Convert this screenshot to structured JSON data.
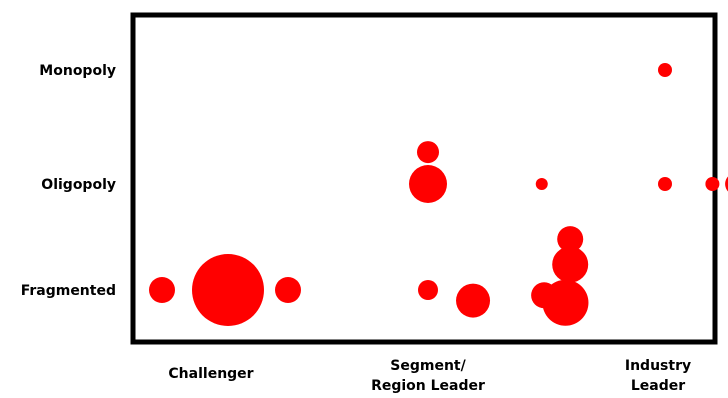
{
  "chart_data": {
    "type": "scatter",
    "title": "",
    "xlabel": "",
    "ylabel": "",
    "x_categories": [
      "Challenger",
      "Segment/\nRegion Leader",
      "Industry\nLeader"
    ],
    "y_categories": [
      "Fragmented",
      "Oligopoly",
      "Monopoly"
    ],
    "grid": false,
    "legend": "none",
    "color": "#ff0000",
    "points": [
      {
        "x": 0.0,
        "y": 0.0,
        "size": 36
      },
      {
        "x": -0.33,
        "y": 0.0,
        "size": 13
      },
      {
        "x": 0.3,
        "y": 0.0,
        "size": 13
      },
      {
        "x": 1.0,
        "y": 0.0,
        "size": 10
      },
      {
        "x": 1.19,
        "y": -0.1,
        "size": 17
      },
      {
        "x": 1.58,
        "y": -0.12,
        "size": 23
      },
      {
        "x": 1.49,
        "y": -0.05,
        "size": 13
      },
      {
        "x": 1.6,
        "y": 0.24,
        "size": 18
      },
      {
        "x": 1.6,
        "y": 0.48,
        "size": 13
      },
      {
        "x": 1.0,
        "y": 1.0,
        "size": 19
      },
      {
        "x": 1.0,
        "y": 1.28,
        "size": 11
      },
      {
        "x": 1.48,
        "y": 1.0,
        "size": 6
      },
      {
        "x": 2.0,
        "y": 1.0,
        "size": 7
      },
      {
        "x": 2.2,
        "y": 1.0,
        "size": 7
      },
      {
        "x": 2.3,
        "y": 1.0,
        "size": 11
      },
      {
        "x": 2.0,
        "y": 2.0,
        "size": 7
      }
    ]
  }
}
